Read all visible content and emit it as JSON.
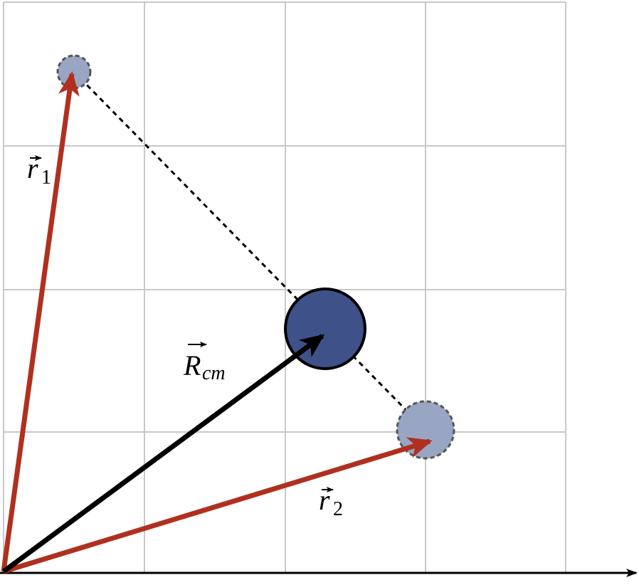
{
  "labels": [
    {
      "symbol": "r",
      "subscript": "1"
    },
    {
      "symbol": "R",
      "subscript": "cm"
    },
    {
      "symbol": "r",
      "subscript": "2"
    }
  ]
}
